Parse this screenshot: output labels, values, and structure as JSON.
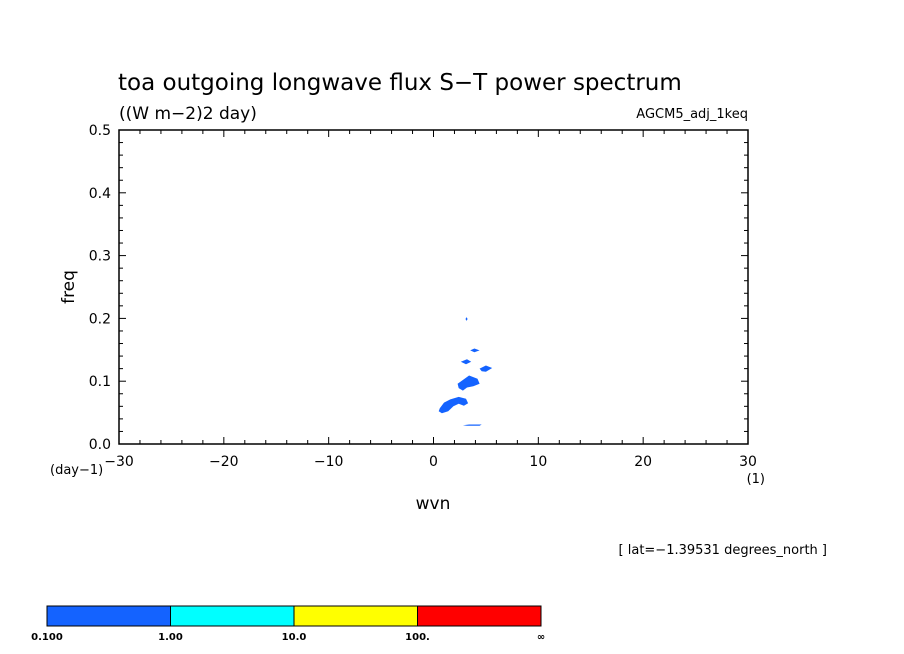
{
  "chart_data": {
    "type": "heatmap",
    "title": "toa outgoing longwave flux S-T power spectrum",
    "units_label": "((W m-2)2 day)",
    "experiment": "AGCM5_adj_1keq",
    "xlabel": "wvn",
    "ylabel": "freq",
    "x_unit": "(1)",
    "y_unit": "(day-1)",
    "xlim": [
      -30,
      30
    ],
    "ylim": [
      0,
      0.5
    ],
    "x_ticks": [
      -30,
      -20,
      -10,
      0,
      10,
      20,
      30
    ],
    "y_ticks": [
      0.0,
      0.1,
      0.2,
      0.3,
      0.4,
      0.5
    ],
    "x_tick_labels": [
      "-30",
      "-20",
      "-10",
      "0",
      "10",
      "20",
      "30"
    ],
    "y_tick_labels": [
      "0.0",
      "0.1",
      "0.2",
      "0.3",
      "0.4",
      "0.5"
    ],
    "footnote": "[ lat=-1.39531 degrees_north ]",
    "colorbar": {
      "colors": [
        "#1463ff",
        "#00ffff",
        "#ffff00",
        "#ff0000"
      ],
      "labels": [
        "0.100",
        "1.00",
        "10.0",
        "100.",
        "∞"
      ]
    },
    "shaded_regions": [
      {
        "level": "0.1-1.0",
        "points": [
          [
            0.6,
            0.057
          ],
          [
            1.0,
            0.066
          ],
          [
            1.6,
            0.071
          ],
          [
            2.4,
            0.075
          ],
          [
            3.1,
            0.072
          ],
          [
            3.3,
            0.065
          ],
          [
            2.9,
            0.061
          ],
          [
            2.4,
            0.064
          ],
          [
            1.9,
            0.06
          ],
          [
            1.4,
            0.052
          ],
          [
            0.8,
            0.049
          ],
          [
            0.5,
            0.052
          ]
        ]
      },
      {
        "level": "0.1-1.0",
        "points": [
          [
            2.3,
            0.096
          ],
          [
            2.9,
            0.103
          ],
          [
            3.4,
            0.109
          ],
          [
            4.2,
            0.104
          ],
          [
            4.4,
            0.096
          ],
          [
            3.8,
            0.092
          ],
          [
            3.2,
            0.09
          ],
          [
            2.8,
            0.085
          ],
          [
            2.4,
            0.089
          ]
        ]
      },
      {
        "level": "0.1-1.0",
        "points": [
          [
            4.4,
            0.12
          ],
          [
            5.0,
            0.125
          ],
          [
            5.6,
            0.121
          ],
          [
            5.0,
            0.115
          ],
          [
            4.6,
            0.116
          ]
        ]
      },
      {
        "level": "0.1-1.0",
        "points": [
          [
            2.6,
            0.131
          ],
          [
            3.2,
            0.135
          ],
          [
            3.6,
            0.131
          ],
          [
            3.1,
            0.127
          ]
        ]
      },
      {
        "level": "0.1-1.0",
        "points": [
          [
            3.5,
            0.149
          ],
          [
            3.9,
            0.152
          ],
          [
            4.4,
            0.149
          ],
          [
            3.9,
            0.146
          ]
        ]
      },
      {
        "level": "0.1-1.0",
        "points": [
          [
            2.8,
            0.03
          ],
          [
            3.4,
            0.031
          ],
          [
            4.6,
            0.031
          ],
          [
            4.4,
            0.029
          ],
          [
            3.2,
            0.029
          ]
        ]
      },
      {
        "level": "0.1-1.0",
        "points": [
          [
            3.05,
            0.199
          ],
          [
            3.15,
            0.202
          ],
          [
            3.25,
            0.199
          ],
          [
            3.15,
            0.196
          ]
        ]
      }
    ]
  }
}
